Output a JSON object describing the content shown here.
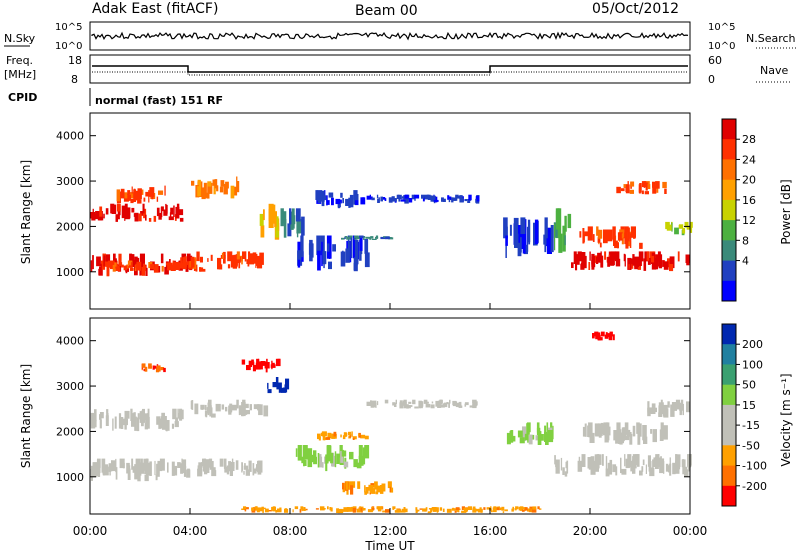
{
  "header": {
    "station": "Adak East (fitACF)",
    "beam": "Beam 00",
    "date": "05/Oct/2012"
  },
  "top_panels": {
    "nsky_label": "N.Sky",
    "nsky_ticks": [
      "10^5",
      "10^0"
    ],
    "nsearch_label": "N.Search",
    "nsearch_ticks": [
      "10^5",
      "10^0"
    ],
    "freq_label": "Freq.",
    "freq_unit": "[MHz]",
    "freq_ticks": [
      "18",
      "8"
    ],
    "nave_label": "Nave",
    "nave_ticks": [
      "60",
      "0"
    ],
    "cpid_label": "CPID",
    "cpid_text": "normal (fast) 151 RF"
  },
  "chart_data": [
    {
      "type": "heatmap",
      "name": "power-panel",
      "ylabel": "Slant Range [km]",
      "x_range_hours": [
        0,
        24
      ],
      "ylim": [
        180,
        4500
      ],
      "y_ticks": [
        1000,
        2000,
        3000,
        4000
      ],
      "colorbar": {
        "label": "Power [dB]",
        "ticks": [
          "28",
          "24",
          "20",
          "16",
          "12",
          "8",
          "4"
        ],
        "colors": [
          "#e00000",
          "#ff3000",
          "#ff7000",
          "#ffa000",
          "#c8d200",
          "#4cb040",
          "#3a8a7a",
          "#2040c0",
          "#0000ff"
        ]
      },
      "cells": [
        [
          0,
          4,
          900,
          1400,
          0
        ],
        [
          0,
          3.6,
          2100,
          2500,
          0
        ],
        [
          0.4,
          4.5,
          1000,
          1250,
          1
        ],
        [
          3.6,
          6.8,
          1050,
          1450,
          1
        ],
        [
          6.6,
          7.6,
          1700,
          2500,
          3
        ],
        [
          1,
          3,
          2500,
          2900,
          1
        ],
        [
          4,
          6,
          2600,
          3100,
          2
        ],
        [
          7.5,
          8.5,
          1700,
          2400,
          6
        ],
        [
          8.2,
          11,
          1000,
          1800,
          7
        ],
        [
          9,
          11,
          2400,
          2800,
          7
        ],
        [
          11,
          15.5,
          2500,
          2700,
          7
        ],
        [
          10,
          12,
          1700,
          1800,
          6
        ],
        [
          16.5,
          18.5,
          1300,
          2200,
          7
        ],
        [
          18.5,
          19.2,
          1400,
          2400,
          5
        ],
        [
          19.2,
          24,
          1000,
          1450,
          0
        ],
        [
          19.5,
          22,
          1500,
          2000,
          1
        ],
        [
          21,
          23,
          2700,
          3000,
          1
        ],
        [
          23,
          24,
          1800,
          2100,
          4
        ]
      ]
    },
    {
      "type": "heatmap",
      "name": "velocity-panel",
      "ylabel": "Slant Range [km]",
      "x_range_hours": [
        0,
        24
      ],
      "ylim": [
        180,
        4500
      ],
      "y_ticks": [
        1000,
        2000,
        3000,
        4000
      ],
      "xlabel": "Time UT",
      "x_ticks": [
        "00:00",
        "04:00",
        "08:00",
        "12:00",
        "16:00",
        "20:00",
        "00:00"
      ],
      "colorbar": {
        "label": "Velocity [m s⁻¹]",
        "ticks": [
          "200",
          "100",
          "50",
          "15",
          "-15",
          "-50",
          "-100",
          "-200"
        ],
        "colors": [
          "#0028b0",
          "#2080a0",
          "#3aa070",
          "#80d040",
          "#c0c0b8",
          "#c0c0b8",
          "#ffa000",
          "#ff7000",
          "#ff0000"
        ]
      },
      "cells": [
        [
          0,
          4,
          900,
          1400,
          4
        ],
        [
          0,
          3.6,
          2000,
          2500,
          4
        ],
        [
          3.6,
          6.8,
          1000,
          1400,
          4
        ],
        [
          4,
          7,
          2300,
          2700,
          4
        ],
        [
          7,
          7.8,
          2800,
          3200,
          0
        ],
        [
          6,
          7.5,
          3300,
          3600,
          8
        ],
        [
          2,
          3,
          3300,
          3500,
          7
        ],
        [
          8.2,
          11,
          1100,
          1700,
          3
        ],
        [
          9,
          11,
          1800,
          2000,
          6
        ],
        [
          11,
          15.5,
          2500,
          2700,
          4
        ],
        [
          10,
          12,
          600,
          900,
          6
        ],
        [
          16.5,
          18.5,
          1700,
          2200,
          3
        ],
        [
          18.5,
          24,
          1000,
          1500,
          4
        ],
        [
          19.5,
          23,
          1700,
          2200,
          4
        ],
        [
          22,
          24,
          2300,
          2700,
          4
        ],
        [
          20,
          21,
          4000,
          4200,
          8
        ],
        [
          6,
          18,
          200,
          350,
          6
        ]
      ]
    }
  ]
}
